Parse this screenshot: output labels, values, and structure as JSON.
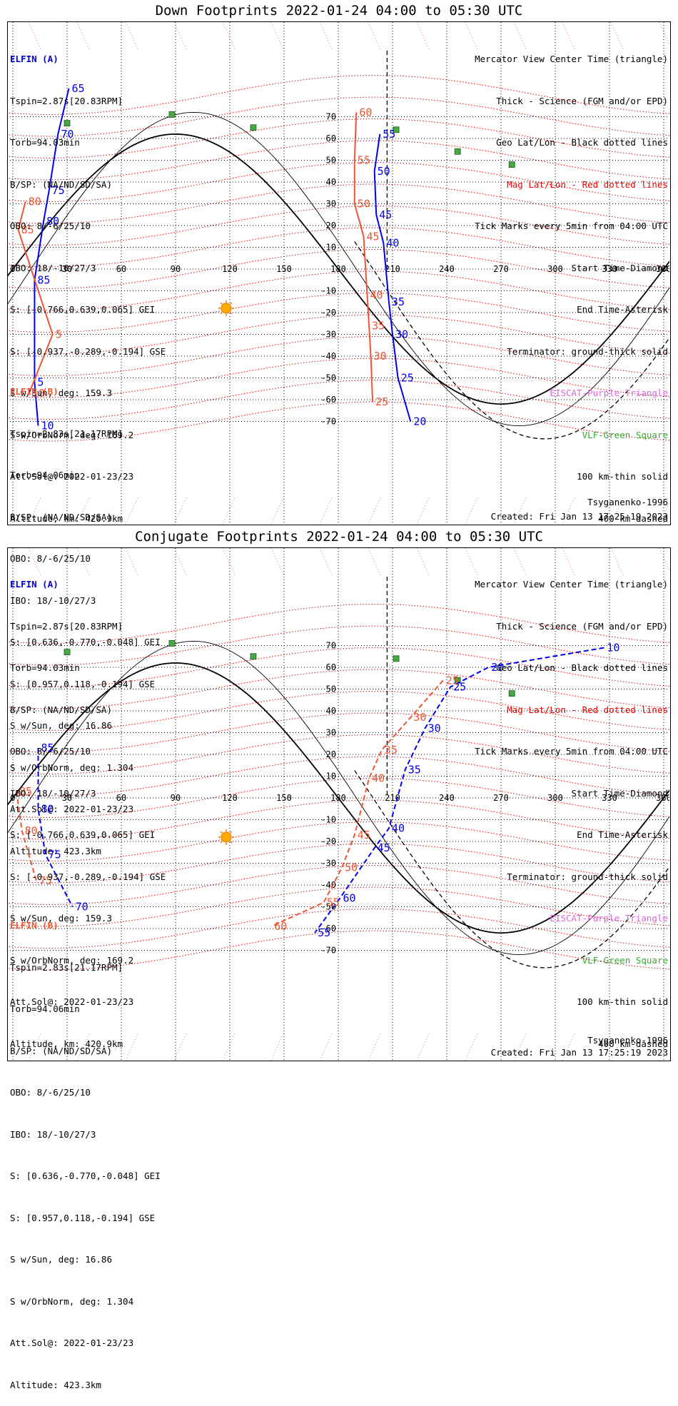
{
  "panels": [
    {
      "id": "down",
      "title": "Down Footprints 2022-01-24 04:00 to 05:30 UTC",
      "elfin_a": {
        "name": "ELFIN (A)",
        "lines": [
          "Tspin=2.87s[20.83RPM]",
          "Torb=94.03min",
          "B/SP: (NA/ND/SD/SA)",
          "OBO: 8/-6/25/10",
          "IBO: 18/-10/27/3",
          "S: [-0.766,0.639,0.065] GEI",
          "S: [-0.937,-0.289,-0.194] GSE",
          "S w/Sun, deg: 159.3",
          "S w/OrbNorm, deg: 169.2",
          "Att.Sol@: 2022-01-23/23",
          "Altitude, km: 420.9km"
        ]
      },
      "elfin_b": {
        "name": "ELFIN (B)",
        "lines": [
          "Tspin=2.83s[21.17RPM]",
          "Torb=94.06min",
          "B/SP: (NA/ND/SD/SA)",
          "OBO: 8/-6/25/10",
          "IBO: 18/-10/27/3",
          "S: [0.636,-0.770,-0.048] GEI",
          "S: [0.957,0.118,-0.194] GSE",
          "S w/Sun, deg: 16.86",
          "S w/OrbNorm, deg: 1.304",
          "Att.Sol@: 2022-01-23/23",
          "Altitude: 423.3km"
        ]
      },
      "legend": [
        "Mercator View Center Time (triangle)",
        "Thick - Science (FGM and/or EPD)",
        "Geo Lat/Lon - Black dotted lines",
        "Mag Lat/Lon - Red dotted lines",
        "Tick Marks every 5min from 04:00 UTC",
        "Start Time-Diamond",
        "End Time-Asterisk",
        "Terminator: ground-thick solid",
        "EISCAT-Purple Triangle",
        "VLF-Green Square",
        "100 km-thin solid",
        "400 km-dashed"
      ],
      "model": "Tsyganenko-1996",
      "created": "Created: Fri Jan 13 17:25:19 2023"
    },
    {
      "id": "conj",
      "title": "Conjugate Footprints 2022-01-24 04:00 to 05:30 UTC",
      "elfin_a": {
        "name": "ELFIN (A)",
        "lines": [
          "Tspin=2.87s[20.83RPM]",
          "Torb=94.03min",
          "B/SP: (NA/ND/SD/SA)",
          "OBO: 8/-6/25/10",
          "IBO: 18/-10/27/3",
          "S: [-0.766,0.639,0.065] GEI",
          "S: [-0.937,-0.289,-0.194] GSE",
          "S w/Sun, deg: 159.3",
          "S w/OrbNorm, deg: 169.2",
          "Att.Sol@: 2022-01-23/23",
          "Altitude, km: 420.9km"
        ]
      },
      "elfin_b": {
        "name": "ELFIN (B)",
        "lines": [
          "Tspin=2.83s[21.17RPM]",
          "Torb=94.06min",
          "B/SP: (NA/ND/SD/SA)",
          "OBO: 8/-6/25/10",
          "IBO: 18/-10/27/3",
          "S: [0.636,-0.770,-0.048] GEI",
          "S: [0.957,0.118,-0.194] GSE",
          "S w/Sun, deg: 16.86",
          "S w/OrbNorm, deg: 1.304",
          "Att.Sol@: 2022-01-23/23",
          "Altitude: 423.3km"
        ]
      },
      "legend": [
        "Mercator View Center Time (triangle)",
        "Thick - Science (FGM and/or EPD)",
        "Geo Lat/Lon - Black dotted lines",
        "Mag Lat/Lon - Red dotted lines",
        "Tick Marks every 5min from 04:00 UTC",
        "Start Time-Diamond",
        "End Time-Asterisk",
        "Terminator: ground-thick solid",
        "EISCAT-Purple Triangle",
        "VLF-Green Square",
        "100 km-thin solid",
        "400 km-dashed"
      ],
      "model": "Tsyganenko-1996",
      "created": "Created: Fri Jan 13 17:25:19 2023"
    }
  ],
  "colors": {
    "elfin_a": "#0000ee",
    "elfin_b": "#ee5533",
    "mag_grid": "#ee0000",
    "geo_grid": "#000000",
    "eiscat": "#dd66dd",
    "vlf": "#44aa44",
    "sun": "#ffaa00"
  },
  "axes": {
    "lon_ticks": [
      0,
      30,
      60,
      90,
      120,
      150,
      180,
      210,
      240,
      270,
      300,
      330,
      360
    ],
    "lat_ticks": [
      70,
      60,
      50,
      40,
      30,
      20,
      10,
      -10,
      -20,
      -30,
      -40,
      -50,
      -60,
      -70
    ]
  },
  "sun_position": {
    "lon": 118,
    "lat": -18
  },
  "vlf_stations": [
    {
      "lon": 88,
      "lat": 71
    },
    {
      "lon": 133,
      "lat": 65
    },
    {
      "lon": 30,
      "lat": 67
    },
    {
      "lon": 212,
      "lat": 64
    },
    {
      "lon": 246,
      "lat": 54
    },
    {
      "lon": 276,
      "lat": 48
    }
  ],
  "down_tracks": {
    "a_label_ticks": [
      {
        "text": "65",
        "lon": 31,
        "lat": 83
      },
      {
        "text": "70",
        "lon": 25,
        "lat": 62
      },
      {
        "text": "75",
        "lon": 20,
        "lat": 36
      },
      {
        "text": "80",
        "lon": 17,
        "lat": 22
      },
      {
        "text": "85",
        "lon": 12,
        "lat": -5
      },
      {
        "text": "55",
        "lon": 203,
        "lat": 62
      },
      {
        "text": "50",
        "lon": 200,
        "lat": 45
      },
      {
        "text": "45",
        "lon": 201,
        "lat": 25
      },
      {
        "text": "40",
        "lon": 205,
        "lat": 12
      },
      {
        "text": "35",
        "lon": 208,
        "lat": -15
      },
      {
        "text": "30",
        "lon": 210,
        "lat": -30
      },
      {
        "text": "25",
        "lon": 213,
        "lat": -50
      },
      {
        "text": "20",
        "lon": 220,
        "lat": -70
      },
      {
        "text": "5",
        "lon": 12,
        "lat": -52
      },
      {
        "text": "10",
        "lon": 14,
        "lat": -72
      }
    ],
    "b_label_ticks": [
      {
        "text": "60",
        "lon": 190,
        "lat": 72
      },
      {
        "text": "55",
        "lon": 189,
        "lat": 50
      },
      {
        "text": "50",
        "lon": 189,
        "lat": 30
      },
      {
        "text": "45",
        "lon": 194,
        "lat": 15
      },
      {
        "text": "40",
        "lon": 196,
        "lat": -12
      },
      {
        "text": "35",
        "lon": 197,
        "lat": -26
      },
      {
        "text": "30",
        "lon": 198,
        "lat": -40
      },
      {
        "text": "25",
        "lon": 199,
        "lat": -61
      },
      {
        "text": "80",
        "lon": 7,
        "lat": 31
      },
      {
        "text": "85",
        "lon": 3,
        "lat": 18
      },
      {
        "text": "5",
        "lon": 22,
        "lat": -30
      },
      {
        "text": "10",
        "lon": 9,
        "lat": -57
      }
    ]
  },
  "conj_tracks": {
    "a_label_ticks": [
      {
        "text": "85",
        "lon": 14,
        "lat": 23
      },
      {
        "text": "80",
        "lon": 14,
        "lat": -5
      },
      {
        "text": "75",
        "lon": 18,
        "lat": -26
      },
      {
        "text": "70",
        "lon": 33,
        "lat": -50
      },
      {
        "text": "60",
        "lon": 181,
        "lat": -46
      },
      {
        "text": "55",
        "lon": 167,
        "lat": -62
      },
      {
        "text": "45",
        "lon": 200,
        "lat": -23
      },
      {
        "text": "40",
        "lon": 208,
        "lat": -14
      },
      {
        "text": "35",
        "lon": 217,
        "lat": 13
      },
      {
        "text": "30",
        "lon": 228,
        "lat": 32
      },
      {
        "text": "25",
        "lon": 242,
        "lat": 51
      },
      {
        "text": "20",
        "lon": 263,
        "lat": 60
      },
      {
        "text": "10",
        "lon": 327,
        "lat": 69
      }
    ],
    "b_label_ticks": [
      {
        "text": "85",
        "lon": 2,
        "lat": 3
      },
      {
        "text": "80",
        "lon": 5,
        "lat": -15
      },
      {
        "text": "75",
        "lon": 13,
        "lat": -38
      },
      {
        "text": "60",
        "lon": 143,
        "lat": -59
      },
      {
        "text": "55",
        "lon": 172,
        "lat": -48
      },
      {
        "text": "50",
        "lon": 182,
        "lat": -32
      },
      {
        "text": "45",
        "lon": 189,
        "lat": -17
      },
      {
        "text": "40",
        "lon": 197,
        "lat": 9
      },
      {
        "text": "35",
        "lon": 204,
        "lat": 22
      },
      {
        "text": "30",
        "lon": 220,
        "lat": 37
      },
      {
        "text": "25",
        "lon": 238,
        "lat": 54
      }
    ]
  }
}
